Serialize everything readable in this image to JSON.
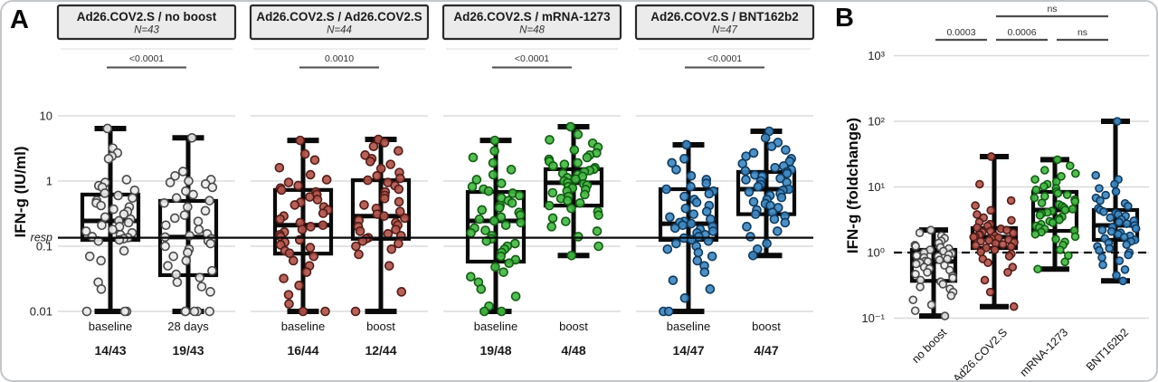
{
  "chart_data": [
    {
      "panel": "A",
      "type": "boxplot",
      "yscale": "log",
      "ylabel": "IFN-g (IU/ml)",
      "ylim": [
        0.01,
        10
      ],
      "yticks": [
        10,
        1,
        0.1,
        0.01
      ],
      "ytick_labels": [
        "10",
        "1",
        "0.1",
        "0.01"
      ],
      "threshold": {
        "value": 0.135,
        "label": "resp",
        "style": "solid"
      },
      "groups": [
        {
          "title": "Ad26.COV2.S / no boost",
          "n_label": "N=43",
          "p_value": "<0.0001",
          "fill": "#ebebeb",
          "stroke": "#4a4a4a",
          "series": [
            {
              "label": "baseline",
              "responders": "14/43",
              "box": {
                "lo": 0.01,
                "q1": 0.125,
                "med": 0.245,
                "q3": 0.62,
                "hi": 6.4
              },
              "values": [
                6.4,
                3.2,
                2.7,
                2.4,
                2.2,
                1.05,
                0.95,
                0.85,
                0.8,
                0.72,
                0.65,
                0.6,
                0.55,
                0.5,
                0.46,
                0.42,
                0.4,
                0.37,
                0.34,
                0.31,
                0.28,
                0.26,
                0.245,
                0.23,
                0.21,
                0.2,
                0.18,
                0.17,
                0.16,
                0.15,
                0.14,
                0.135,
                0.13,
                0.125,
                0.12,
                0.085,
                0.07,
                0.06,
                0.028,
                0.022,
                0.01,
                0.01,
                0.01
              ]
            },
            {
              "label": "28 days",
              "responders": "19/43",
              "box": {
                "lo": 0.01,
                "q1": 0.036,
                "med": 0.138,
                "q3": 0.495,
                "hi": 4.6
              },
              "values": [
                4.6,
                1.4,
                1.2,
                1.05,
                1.0,
                0.95,
                0.9,
                0.8,
                0.7,
                0.62,
                0.55,
                0.5,
                0.46,
                0.4,
                0.35,
                0.3,
                0.27,
                0.24,
                0.21,
                0.18,
                0.155,
                0.145,
                0.138,
                0.13,
                0.12,
                0.11,
                0.1,
                0.09,
                0.08,
                0.07,
                0.06,
                0.05,
                0.042,
                0.037,
                0.033,
                0.028,
                0.024,
                0.02,
                0.01,
                0.01,
                0.01,
                0.01,
                0.01
              ]
            }
          ]
        },
        {
          "title": "Ad26.COV2.S / Ad26.COV2.S",
          "n_label": "N=44",
          "p_value": "0.0010",
          "fill": "#b0564e",
          "stroke": "#541b16",
          "series": [
            {
              "label": "baseline",
              "responders": "16/44",
              "box": {
                "lo": 0.01,
                "q1": 0.077,
                "med": 0.21,
                "q3": 0.73,
                "hi": 4.2
              },
              "values": [
                4.2,
                2.6,
                2.1,
                1.6,
                1.25,
                1.05,
                0.95,
                0.85,
                0.78,
                0.73,
                0.68,
                0.62,
                0.57,
                0.52,
                0.47,
                0.43,
                0.4,
                0.36,
                0.32,
                0.29,
                0.26,
                0.23,
                0.21,
                0.2,
                0.18,
                0.165,
                0.15,
                0.14,
                0.125,
                0.115,
                0.105,
                0.095,
                0.085,
                0.078,
                0.07,
                0.06,
                0.05,
                0.04,
                0.032,
                0.025,
                0.018,
                0.013,
                0.01,
                0.01
              ]
            },
            {
              "label": "boost",
              "responders": "12/44",
              "box": {
                "lo": 0.01,
                "q1": 0.13,
                "med": 0.29,
                "q3": 1.03,
                "hi": 4.35
              },
              "values": [
                4.35,
                3.9,
                3.4,
                2.9,
                2.5,
                2.2,
                2.0,
                1.8,
                1.55,
                1.35,
                1.2,
                1.1,
                1.03,
                0.95,
                0.85,
                0.75,
                0.68,
                0.6,
                0.54,
                0.48,
                0.43,
                0.38,
                0.34,
                0.31,
                0.29,
                0.27,
                0.25,
                0.23,
                0.21,
                0.2,
                0.18,
                0.17,
                0.155,
                0.145,
                0.135,
                0.13,
                0.12,
                0.11,
                0.1,
                0.09,
                0.075,
                0.05,
                0.02,
                0.01
              ]
            }
          ]
        },
        {
          "title": "Ad26.COV2.S / mRNA-1273",
          "n_label": "N=48",
          "p_value": "<0.0001",
          "fill": "#46b747",
          "stroke": "#115c11",
          "series": [
            {
              "label": "baseline",
              "responders": "19/48",
              "box": {
                "lo": 0.01,
                "q1": 0.058,
                "med": 0.245,
                "q3": 0.68,
                "hi": 4.2
              },
              "values": [
                4.2,
                2.9,
                2.3,
                1.9,
                1.5,
                1.25,
                1.05,
                0.92,
                0.82,
                0.75,
                0.7,
                0.65,
                0.6,
                0.55,
                0.5,
                0.46,
                0.42,
                0.39,
                0.36,
                0.33,
                0.3,
                0.28,
                0.26,
                0.245,
                0.23,
                0.21,
                0.19,
                0.175,
                0.16,
                0.145,
                0.13,
                0.12,
                0.11,
                0.1,
                0.09,
                0.08,
                0.07,
                0.062,
                0.055,
                0.048,
                0.04,
                0.034,
                0.028,
                0.022,
                0.017,
                0.012,
                0.01,
                0.01
              ]
            },
            {
              "label": "boost",
              "responders": "4/48",
              "box": {
                "lo": 0.072,
                "q1": 0.42,
                "med": 0.94,
                "q3": 1.52,
                "hi": 6.8
              },
              "values": [
                6.8,
                5.2,
                4.3,
                3.8,
                3.3,
                3.0,
                2.7,
                2.5,
                2.3,
                2.15,
                2.0,
                1.9,
                1.8,
                1.7,
                1.6,
                1.52,
                1.45,
                1.38,
                1.3,
                1.25,
                1.18,
                1.12,
                1.07,
                1.0,
                0.94,
                0.9,
                0.86,
                0.82,
                0.78,
                0.74,
                0.7,
                0.66,
                0.62,
                0.58,
                0.54,
                0.5,
                0.46,
                0.42,
                0.38,
                0.34,
                0.3,
                0.27,
                0.24,
                0.2,
                0.17,
                0.14,
                0.1,
                0.072
              ]
            }
          ]
        },
        {
          "title": "Ad26.COV2.S / BNT162b2",
          "n_label": "N=47",
          "p_value": "<0.0001",
          "fill": "#4088c0",
          "stroke": "#0f3a5f",
          "series": [
            {
              "label": "baseline",
              "responders": "14/47",
              "box": {
                "lo": 0.01,
                "q1": 0.125,
                "med": 0.222,
                "q3": 0.75,
                "hi": 3.6
              },
              "values": [
                3.6,
                2.2,
                1.9,
                1.5,
                1.2,
                1.05,
                0.92,
                0.82,
                0.75,
                0.7,
                0.64,
                0.58,
                0.52,
                0.47,
                0.42,
                0.38,
                0.34,
                0.31,
                0.28,
                0.26,
                0.24,
                0.23,
                0.222,
                0.21,
                0.2,
                0.19,
                0.18,
                0.17,
                0.16,
                0.15,
                0.14,
                0.133,
                0.126,
                0.12,
                0.11,
                0.1,
                0.09,
                0.08,
                0.07,
                0.06,
                0.05,
                0.04,
                0.03,
                0.022,
                0.016,
                0.01,
                0.01
              ]
            },
            {
              "label": "boost",
              "responders": "4/47",
              "box": {
                "lo": 0.072,
                "q1": 0.31,
                "med": 0.75,
                "q3": 1.38,
                "hi": 5.8
              },
              "values": [
                5.8,
                4.6,
                3.9,
                3.4,
                3.0,
                2.7,
                2.4,
                2.2,
                2.0,
                1.85,
                1.7,
                1.6,
                1.5,
                1.43,
                1.38,
                1.3,
                1.24,
                1.18,
                1.1,
                1.05,
                1.0,
                0.95,
                0.88,
                0.82,
                0.75,
                0.72,
                0.68,
                0.64,
                0.6,
                0.56,
                0.52,
                0.48,
                0.45,
                0.42,
                0.39,
                0.36,
                0.33,
                0.31,
                0.29,
                0.26,
                0.23,
                0.2,
                0.17,
                0.14,
                0.11,
                0.09,
                0.072
              ]
            }
          ]
        }
      ]
    },
    {
      "panel": "B",
      "type": "boxplot",
      "yscale": "log",
      "ylabel": "IFN-g (foldchange)",
      "ylim": [
        0.1,
        1000
      ],
      "yticks": [
        1000,
        100,
        10,
        1,
        0.1
      ],
      "ytick_labels": [
        "10³",
        "10²",
        "10¹",
        "10⁰",
        "10⁻¹"
      ],
      "threshold": {
        "value": 1,
        "style": "dashed"
      },
      "series": [
        {
          "label": "no boost",
          "fill": "#ebebeb",
          "stroke": "#4a4a4a",
          "box": {
            "lo": 0.108,
            "q1": 0.37,
            "med": 0.73,
            "q3": 1.1,
            "hi": 2.2
          },
          "values": [
            2.2,
            2.0,
            1.8,
            1.65,
            1.5,
            1.4,
            1.3,
            1.25,
            1.2,
            1.15,
            1.1,
            1.05,
            1.0,
            0.97,
            0.93,
            0.9,
            0.87,
            0.84,
            0.8,
            0.77,
            0.74,
            0.73,
            0.7,
            0.67,
            0.64,
            0.6,
            0.57,
            0.54,
            0.5,
            0.47,
            0.44,
            0.41,
            0.38,
            0.36,
            0.33,
            0.3,
            0.28,
            0.25,
            0.22,
            0.19,
            0.16,
            0.13,
            0.108
          ]
        },
        {
          "label": "Ad26.COV2.S",
          "fill": "#b0564e",
          "stroke": "#541b16",
          "box": {
            "lo": 0.15,
            "q1": 1.17,
            "med": 1.72,
            "q3": 2.36,
            "hi": 29
          },
          "values": [
            29,
            11,
            6.2,
            5.2,
            4.4,
            3.8,
            3.4,
            3.1,
            2.9,
            2.7,
            2.55,
            2.4,
            2.3,
            2.2,
            2.12,
            2.05,
            1.98,
            1.9,
            1.85,
            1.8,
            1.76,
            1.72,
            1.68,
            1.63,
            1.58,
            1.53,
            1.48,
            1.43,
            1.38,
            1.33,
            1.28,
            1.23,
            1.18,
            1.1,
            1.02,
            0.95,
            0.88,
            0.8,
            0.7,
            0.6,
            0.5,
            0.38,
            0.25,
            0.15
          ]
        },
        {
          "label": "mRNA-1273",
          "fill": "#46b747",
          "stroke": "#115c11",
          "box": {
            "lo": 0.56,
            "q1": 2.14,
            "med": 4.45,
            "q3": 8.4,
            "hi": 26
          },
          "values": [
            26,
            21,
            18,
            16,
            14.5,
            13,
            12,
            11,
            10.2,
            9.5,
            9.0,
            8.5,
            8.0,
            7.6,
            7.2,
            6.8,
            6.4,
            6.0,
            5.7,
            5.4,
            5.1,
            4.8,
            4.6,
            4.45,
            4.3,
            4.1,
            3.9,
            3.7,
            3.5,
            3.3,
            3.15,
            3.0,
            2.85,
            2.7,
            2.55,
            2.4,
            2.28,
            2.16,
            2.05,
            1.9,
            1.75,
            1.6,
            1.45,
            1.3,
            1.1,
            0.9,
            0.72,
            0.56
          ]
        },
        {
          "label": "BNT162b2",
          "fill": "#4088c0",
          "stroke": "#0f3a5f",
          "box": {
            "lo": 0.37,
            "q1": 1.56,
            "med": 2.59,
            "q3": 4.45,
            "hi": 100
          },
          "values": [
            100,
            15,
            13,
            11,
            9.5,
            8.5,
            7.5,
            6.8,
            6.2,
            5.6,
            5.1,
            4.7,
            4.45,
            4.2,
            4.0,
            3.8,
            3.6,
            3.4,
            3.2,
            3.05,
            2.9,
            2.75,
            2.59,
            2.45,
            2.32,
            2.2,
            2.1,
            2.0,
            1.9,
            1.8,
            1.72,
            1.64,
            1.56,
            1.48,
            1.4,
            1.32,
            1.24,
            1.16,
            1.08,
            1.0,
            0.92,
            0.84,
            0.75,
            0.65,
            0.55,
            0.45,
            0.37
          ]
        }
      ],
      "brackets": [
        {
          "from": 0,
          "to": 1,
          "label": "0.0003",
          "level": 0
        },
        {
          "from": 1,
          "to": 2,
          "label": "0.0006",
          "level": 0
        },
        {
          "from": 2,
          "to": 3,
          "label": "ns",
          "level": 0
        },
        {
          "from": 1,
          "to": 3,
          "label": "ns",
          "level": 1
        }
      ]
    }
  ]
}
